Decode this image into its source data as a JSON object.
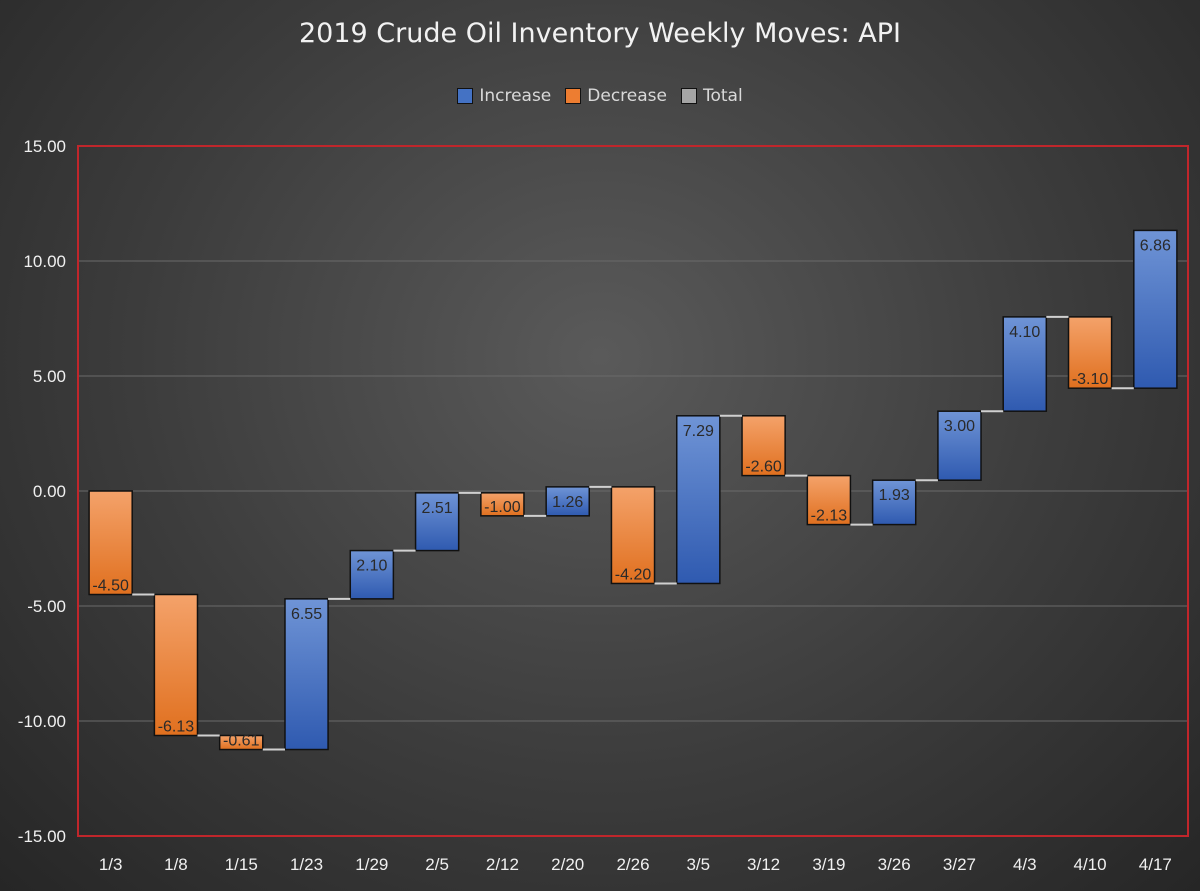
{
  "chart_data": {
    "type": "waterfall",
    "title": "2019 Crude Oil Inventory Weekly Moves: API",
    "xlabel": "",
    "ylabel": "",
    "ylim": [
      -15,
      15
    ],
    "ytick_values": [
      15,
      10,
      5,
      0,
      -5,
      -10,
      -15
    ],
    "ytick_labels": [
      "15.00",
      "10.00",
      "5.00",
      "0.00",
      "-5.00",
      "-10.00",
      "-15.00"
    ],
    "grid": true,
    "legend_position": "top-center",
    "legend": [
      {
        "label": "Increase",
        "color": "#4472c4"
      },
      {
        "label": "Decrease",
        "color": "#ed7d31"
      },
      {
        "label": "Total",
        "color": "#a5a5a5"
      }
    ],
    "categories": [
      "1/3",
      "1/8",
      "1/15",
      "1/23",
      "1/29",
      "2/5",
      "2/12",
      "2/20",
      "2/26",
      "3/5",
      "3/12",
      "3/19",
      "3/26",
      "3/27",
      "4/3",
      "4/10",
      "4/17"
    ],
    "values": [
      -4.5,
      -6.13,
      -0.61,
      6.55,
      2.1,
      2.51,
      -1.0,
      1.26,
      -4.2,
      7.29,
      -2.6,
      -2.13,
      1.93,
      3.0,
      4.1,
      -3.1,
      6.86
    ],
    "data_labels": [
      "-4.50",
      "-6.13",
      "-0.61",
      "6.55",
      "2.10",
      "2.51",
      "-1.00",
      "1.26",
      "-4.20",
      "7.29",
      "-2.60",
      "-2.13",
      "1.93",
      "3.00",
      "4.10",
      "-3.10",
      "6.86"
    ]
  }
}
